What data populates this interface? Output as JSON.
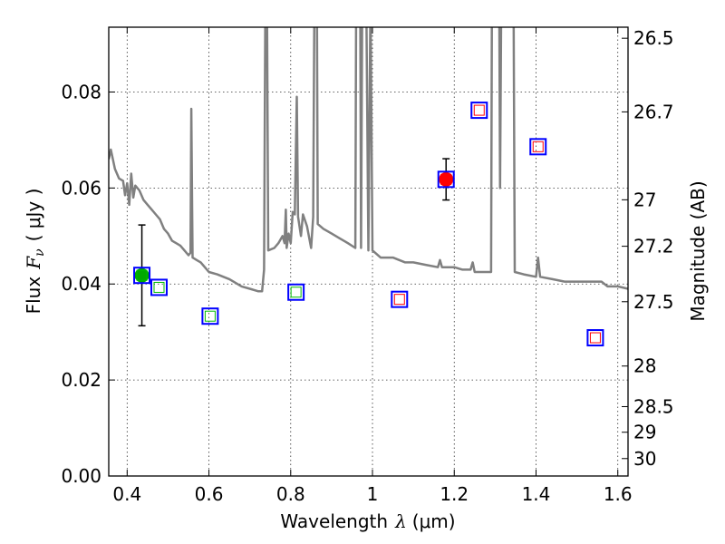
{
  "chart_data": {
    "type": "scatter",
    "xlabel_text": "Wavelength",
    "xlabel_symbol": "λ",
    "xlabel_unit": "(μm)",
    "ylabel_text": "Flux",
    "ylabel_symbol": "F",
    "ylabel_sub": "ν",
    "ylabel_unit": "( μJy )",
    "y2label": "Magnitude (AB)",
    "xlim": [
      0.355,
      1.625
    ],
    "ylim": [
      0.0,
      0.0935
    ],
    "grid": true,
    "xticks": [
      0.4,
      0.6,
      0.8,
      1.0,
      1.2,
      1.4,
      1.6
    ],
    "xtick_labels": [
      "0.4",
      "0.6",
      "0.8",
      "1",
      "1.2",
      "1.4",
      "1.6"
    ],
    "yticks": [
      0.0,
      0.02,
      0.04,
      0.06,
      0.08
    ],
    "ytick_labels": [
      "0.00",
      "0.02",
      "0.04",
      "0.06",
      "0.08"
    ],
    "mag_ticks": [
      26.5,
      26.7,
      27,
      27.2,
      27.5,
      28,
      28.5,
      29,
      30
    ],
    "mag_tick_labels": [
      "26.5",
      "26.7",
      "27",
      "27.2",
      "27.5",
      "28",
      "28.5",
      "29",
      "30"
    ],
    "model_spectrum": {
      "name": "model SED",
      "color": "#808080",
      "points": [
        [
          0.355,
          0.066
        ],
        [
          0.36,
          0.068
        ],
        [
          0.37,
          0.064
        ],
        [
          0.38,
          0.062
        ],
        [
          0.39,
          0.0615
        ],
        [
          0.395,
          0.0585
        ],
        [
          0.4,
          0.061
        ],
        [
          0.405,
          0.0565
        ],
        [
          0.41,
          0.063
        ],
        [
          0.415,
          0.058
        ],
        [
          0.42,
          0.0605
        ],
        [
          0.43,
          0.0595
        ],
        [
          0.44,
          0.0575
        ],
        [
          0.45,
          0.0565
        ],
        [
          0.46,
          0.0555
        ],
        [
          0.47,
          0.0545
        ],
        [
          0.48,
          0.0535
        ],
        [
          0.49,
          0.0515
        ],
        [
          0.5,
          0.0505
        ],
        [
          0.51,
          0.049
        ],
        [
          0.52,
          0.0485
        ],
        [
          0.53,
          0.048
        ],
        [
          0.54,
          0.047
        ],
        [
          0.55,
          0.046
        ],
        [
          0.555,
          0.0465
        ],
        [
          0.557,
          0.0765
        ],
        [
          0.56,
          0.0455
        ],
        [
          0.57,
          0.045
        ],
        [
          0.58,
          0.0445
        ],
        [
          0.59,
          0.0435
        ],
        [
          0.6,
          0.0425
        ],
        [
          0.62,
          0.042
        ],
        [
          0.65,
          0.041
        ],
        [
          0.68,
          0.0395
        ],
        [
          0.7,
          0.039
        ],
        [
          0.72,
          0.0385
        ],
        [
          0.73,
          0.0385
        ],
        [
          0.735,
          0.043
        ],
        [
          0.738,
          0.099
        ],
        [
          0.742,
          0.099
        ],
        [
          0.745,
          0.047
        ],
        [
          0.76,
          0.0475
        ],
        [
          0.77,
          0.0485
        ],
        [
          0.78,
          0.05
        ],
        [
          0.785,
          0.0485
        ],
        [
          0.788,
          0.0555
        ],
        [
          0.79,
          0.0475
        ],
        [
          0.795,
          0.0505
        ],
        [
          0.8,
          0.0485
        ],
        [
          0.805,
          0.055
        ],
        [
          0.81,
          0.0545
        ],
        [
          0.815,
          0.079
        ],
        [
          0.818,
          0.054
        ],
        [
          0.825,
          0.05
        ],
        [
          0.83,
          0.0545
        ],
        [
          0.84,
          0.052
        ],
        [
          0.85,
          0.0475
        ],
        [
          0.855,
          0.054
        ],
        [
          0.858,
          0.099
        ],
        [
          0.864,
          0.099
        ],
        [
          0.866,
          0.0525
        ],
        [
          0.88,
          0.0515
        ],
        [
          0.9,
          0.0505
        ],
        [
          0.92,
          0.0495
        ],
        [
          0.94,
          0.0485
        ],
        [
          0.958,
          0.0475
        ],
        [
          0.96,
          0.099
        ],
        [
          0.97,
          0.099
        ],
        [
          0.972,
          0.0475
        ],
        [
          0.975,
          0.099
        ],
        [
          0.985,
          0.099
        ],
        [
          0.99,
          0.047
        ],
        [
          0.995,
          0.099
        ],
        [
          1.0,
          0.047
        ],
        [
          1.02,
          0.0455
        ],
        [
          1.05,
          0.0455
        ],
        [
          1.08,
          0.0445
        ],
        [
          1.1,
          0.0445
        ],
        [
          1.13,
          0.044
        ],
        [
          1.16,
          0.0435
        ],
        [
          1.165,
          0.045
        ],
        [
          1.17,
          0.0435
        ],
        [
          1.2,
          0.0435
        ],
        [
          1.22,
          0.043
        ],
        [
          1.24,
          0.043
        ],
        [
          1.245,
          0.0445
        ],
        [
          1.25,
          0.0425
        ],
        [
          1.29,
          0.0425
        ],
        [
          1.292,
          0.099
        ],
        [
          1.31,
          0.099
        ],
        [
          1.312,
          0.06
        ],
        [
          1.315,
          0.099
        ],
        [
          1.345,
          0.099
        ],
        [
          1.348,
          0.0425
        ],
        [
          1.37,
          0.042
        ],
        [
          1.4,
          0.0415
        ],
        [
          1.405,
          0.0455
        ],
        [
          1.41,
          0.0415
        ],
        [
          1.44,
          0.041
        ],
        [
          1.47,
          0.0405
        ],
        [
          1.5,
          0.0405
        ],
        [
          1.53,
          0.0405
        ],
        [
          1.56,
          0.0405
        ],
        [
          1.575,
          0.0395
        ],
        [
          1.6,
          0.0395
        ],
        [
          1.625,
          0.039
        ]
      ]
    },
    "observed_points": [
      {
        "name": "green detection",
        "x": 0.436,
        "y": 0.0418,
        "yerr_low": 0.0105,
        "yerr_high": 0.0105,
        "color": "#00aa00"
      },
      {
        "name": "red detection",
        "x": 1.18,
        "y": 0.0618,
        "yerr_low": 0.0043,
        "yerr_high": 0.0043,
        "color": "#ff0000"
      }
    ],
    "model_photometry": [
      {
        "x": 0.436,
        "y": 0.0418,
        "inner_color": "#00bb00"
      },
      {
        "x": 0.478,
        "y": 0.0393,
        "inner_color": "#00bb00"
      },
      {
        "x": 0.603,
        "y": 0.0333,
        "inner_color": "#00bb00"
      },
      {
        "x": 0.813,
        "y": 0.0383,
        "inner_color": "#00bb00"
      },
      {
        "x": 1.066,
        "y": 0.0368,
        "inner_color": "#ff0000"
      },
      {
        "x": 1.18,
        "y": 0.0618,
        "inner_color": "#ff0000"
      },
      {
        "x": 1.261,
        "y": 0.0762,
        "inner_color": "#ff0000"
      },
      {
        "x": 1.405,
        "y": 0.0686,
        "inner_color": "#ff0000"
      },
      {
        "x": 1.545,
        "y": 0.0288,
        "inner_color": "#ff0000"
      }
    ],
    "colors": {
      "outer_square": "#0000ff",
      "errorbar": "#000000"
    }
  }
}
